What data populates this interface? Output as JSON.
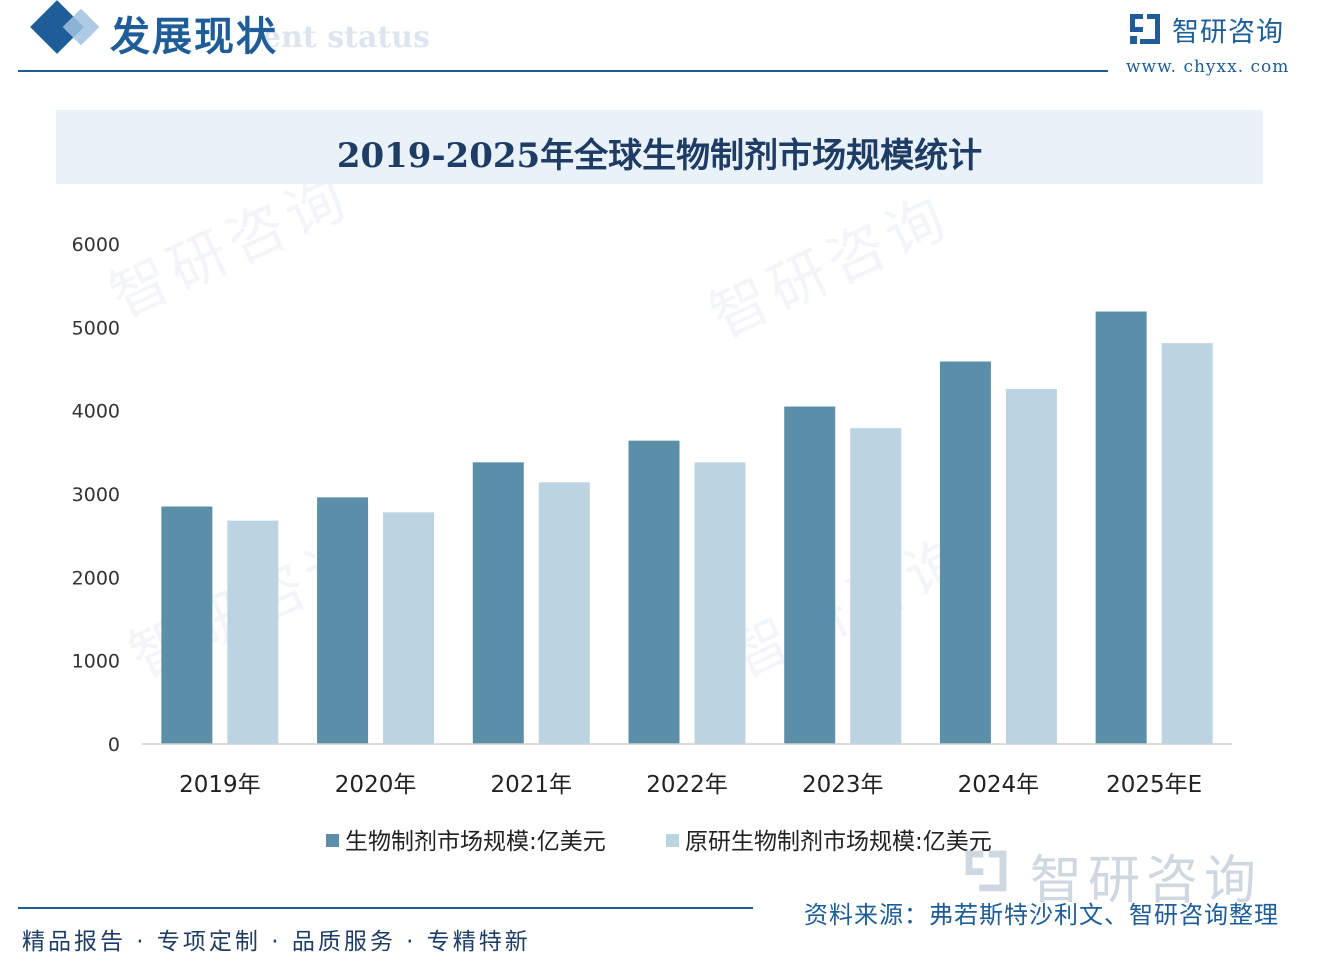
{
  "header": {
    "title": "发展现状",
    "subtitle": "ent status",
    "logo_text": "智研咨询",
    "logo_url": "www. chyxx. com"
  },
  "watermark": "智研咨询",
  "legend": {
    "series1": "生物制剂市场规模:亿美元",
    "series2": "原研生物制剂市场规模:亿美元"
  },
  "source": "资料来源：弗若斯特沙利文、智研咨询整理",
  "slogan": "精品报告 · 专项定制 · 品质服务 · 专精特新",
  "colors": {
    "series1": "#5b8ea8",
    "series2": "#bcd4e1",
    "accent": "#1e5d97"
  },
  "chart_data": {
    "type": "bar",
    "title": "2019-2025年全球生物制剂市场规模统计",
    "categories": [
      "2019年",
      "2020年",
      "2021年",
      "2022年",
      "2023年",
      "2024年",
      "2025年E"
    ],
    "series": [
      {
        "name": "生物制剂市场规模:亿美元",
        "values": [
          2850,
          2960,
          3380,
          3640,
          4050,
          4590,
          5190
        ]
      },
      {
        "name": "原研生物制剂市场规模:亿美元",
        "values": [
          2680,
          2780,
          3140,
          3380,
          3790,
          4260,
          4810
        ]
      }
    ],
    "yticks": [
      "0",
      "1000",
      "2000",
      "3000",
      "4000",
      "5000",
      "6000"
    ],
    "ylim": [
      0,
      6000
    ],
    "grid": false,
    "legend_position": "bottom"
  }
}
